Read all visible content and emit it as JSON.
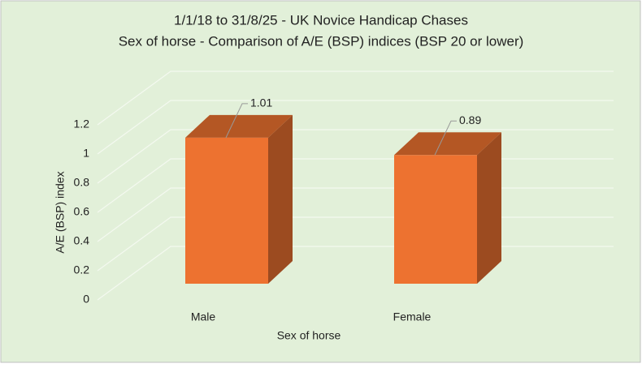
{
  "chart_data": {
    "type": "bar3d",
    "title": "1/1/18 to 31/8/25 - UK Novice Handicap Chases",
    "subtitle": "Sex of horse - Comparison of A/E (BSP) indices (BSP 20 or lower)",
    "x_label": "Sex of horse",
    "y_label": "A/E (BSP) index",
    "categories": [
      "Male",
      "Female"
    ],
    "values": [
      1.01,
      0.89
    ],
    "color": "#ed7230",
    "label_color": "#e00000",
    "ylim": [
      0,
      1.2
    ],
    "yticks": [
      0,
      0.2,
      0.4,
      0.6,
      0.8,
      1,
      1.2
    ],
    "grid": true
  }
}
